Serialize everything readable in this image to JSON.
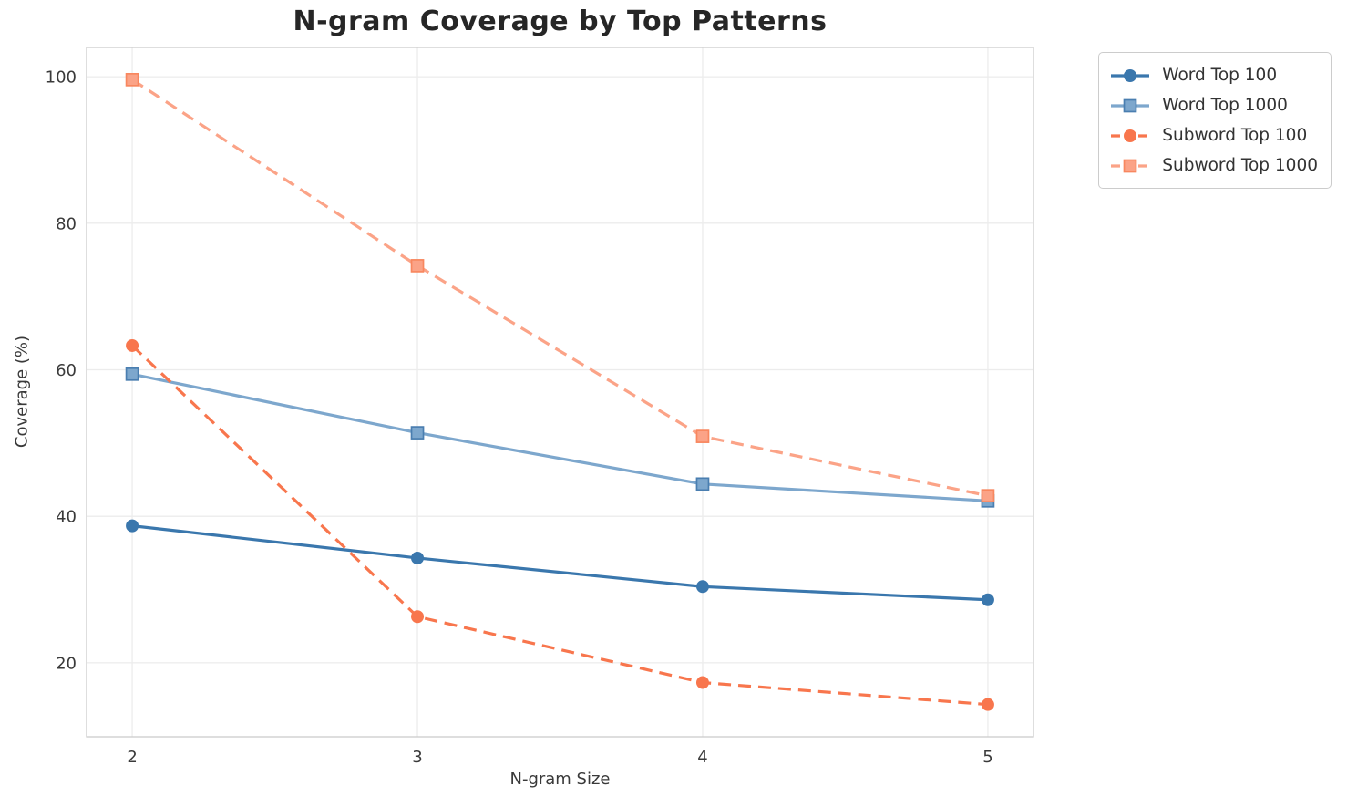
{
  "title": "N-gram Coverage by Top Patterns",
  "axes": {
    "xlabel": "N-gram Size",
    "ylabel": "Coverage (%)"
  },
  "colors": {
    "background": "#ffffff",
    "grid": "#ececec",
    "spine": "#cccccc",
    "title_text": "#262626",
    "tick_text": "#3a3a3a",
    "legend_text": "#333333",
    "legend_border": "#cccccc"
  },
  "chart_data": {
    "type": "line",
    "title": "N-gram Coverage by Top Patterns",
    "xlabel": "N-gram Size",
    "ylabel": "Coverage (%)",
    "x": [
      2,
      3,
      4,
      5
    ],
    "xticks": [
      "2",
      "3",
      "4",
      "5"
    ],
    "yticks": [
      20,
      40,
      60,
      80,
      100
    ],
    "xlim": [
      1.84,
      5.16
    ],
    "ylim": [
      9.9,
      104.0
    ],
    "grid": true,
    "legend_position": "outside upper right",
    "series": [
      {
        "name": "Word Top 100",
        "values": [
          38.7,
          34.3,
          30.4,
          28.6
        ],
        "color": "#3a77ad",
        "edge": "#3a77ad",
        "marker": "circle",
        "line": "solid"
      },
      {
        "name": "Word Top 1000",
        "values": [
          59.4,
          51.4,
          44.4,
          42.1
        ],
        "color": "#7da7cd",
        "edge": "#4a7eb0",
        "marker": "square",
        "line": "solid"
      },
      {
        "name": "Subword Top 100",
        "values": [
          63.3,
          26.3,
          17.3,
          14.3
        ],
        "color": "#f8764d",
        "edge": "#f8764d",
        "marker": "circle",
        "line": "dashed"
      },
      {
        "name": "Subword Top 1000",
        "values": [
          99.6,
          74.2,
          50.9,
          42.8
        ],
        "color": "#fba387",
        "edge": "#f8875f",
        "marker": "square",
        "line": "dashed"
      }
    ]
  }
}
